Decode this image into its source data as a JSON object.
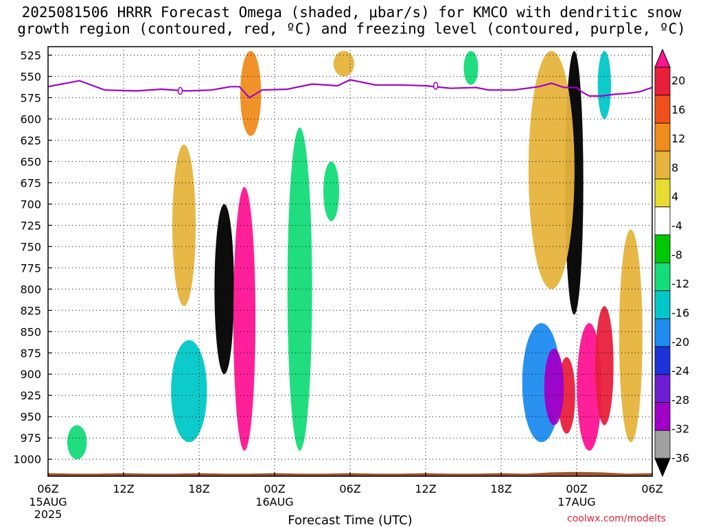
{
  "title": {
    "line1": "2025081506 HRRR Forecast Omega (shaded, μbar/s) for KMCO with dendritic snow",
    "line2": "growth region (contoured, red, ºC) and freezing level (contoured, purple, ºC)"
  },
  "watermark": "coolwx.com/modelts",
  "chart_data": {
    "type": "heatmap",
    "title": "2025081506 HRRR Forecast Omega (shaded, μbar/s) for KMCO with dendritic snow growth region (contoured, red, ºC) and freezing level (contoured, purple, ºC)",
    "xlabel": "Forecast Time (UTC)",
    "ylabel": "",
    "x_range_hours": [
      0,
      48
    ],
    "x_ticks": [
      {
        "hour": 0,
        "label": "06Z",
        "sub": [
          "15AUG",
          "2025"
        ]
      },
      {
        "hour": 6,
        "label": "12Z",
        "sub": []
      },
      {
        "hour": 12,
        "label": "18Z",
        "sub": []
      },
      {
        "hour": 18,
        "label": "00Z",
        "sub": [
          "16AUG"
        ]
      },
      {
        "hour": 24,
        "label": "06Z",
        "sub": []
      },
      {
        "hour": 30,
        "label": "12Z",
        "sub": []
      },
      {
        "hour": 36,
        "label": "18Z",
        "sub": []
      },
      {
        "hour": 42,
        "label": "00Z",
        "sub": [
          "17AUG"
        ]
      },
      {
        "hour": 48,
        "label": "06Z",
        "sub": []
      }
    ],
    "y_range_mb": [
      515,
      1020
    ],
    "y_ticks": [
      525,
      550,
      575,
      600,
      625,
      650,
      675,
      700,
      725,
      750,
      775,
      800,
      825,
      850,
      875,
      900,
      925,
      950,
      975,
      1000
    ],
    "grid": true,
    "colorbar": {
      "labels": [
        "20",
        "16",
        "12",
        "8",
        "4",
        "-4",
        "-8",
        "-12",
        "-16",
        "-20",
        "-24",
        "-28",
        "-32",
        "-36"
      ],
      "colors": [
        "#ff1493",
        "#e8203c",
        "#f0501a",
        "#f08c1e",
        "#e6b43c",
        "#e6dc32",
        "#ffffff",
        "#00c800",
        "#14dc78",
        "#00c8c8",
        "#1e8cf0",
        "#1e32dc",
        "#6e1ed2",
        "#a000c8",
        "#a0a0a0",
        "#000000"
      ]
    },
    "freezing_level": {
      "color": "#a000c8",
      "label": "0",
      "points": [
        [
          0,
          562
        ],
        [
          2.5,
          555
        ],
        [
          4.5,
          566
        ],
        [
          7,
          567
        ],
        [
          9,
          565
        ],
        [
          11,
          567
        ],
        [
          13,
          566
        ],
        [
          14.5,
          562
        ],
        [
          15.2,
          562
        ],
        [
          16,
          575
        ],
        [
          17,
          566
        ],
        [
          19,
          565
        ],
        [
          21,
          559
        ],
        [
          23,
          561
        ],
        [
          24,
          554
        ],
        [
          26,
          560
        ],
        [
          28,
          560
        ],
        [
          30,
          561
        ],
        [
          32,
          564
        ],
        [
          34,
          563
        ],
        [
          35,
          566
        ],
        [
          37,
          566
        ],
        [
          39,
          562
        ],
        [
          40,
          558
        ],
        [
          41,
          563
        ],
        [
          42,
          563
        ],
        [
          42.4,
          568
        ],
        [
          43,
          573
        ],
        [
          44,
          573
        ],
        [
          45,
          571
        ],
        [
          46,
          570
        ],
        [
          47,
          568
        ],
        [
          48,
          563
        ]
      ],
      "label_hours": [
        10.5,
        30.8
      ]
    },
    "omega_features": [
      {
        "hour": 14.0,
        "p_top": 700,
        "p_bot": 900,
        "width_h": 0.9,
        "value": -36
      },
      {
        "hour": 15.6,
        "p_top": 680,
        "p_bot": 990,
        "width_h": 1.1,
        "value": 20
      },
      {
        "hour": 16.1,
        "p_top": 520,
        "p_bot": 620,
        "width_h": 1.0,
        "value": 8
      },
      {
        "hour": 41.8,
        "p_top": 520,
        "p_bot": 830,
        "width_h": 0.8,
        "value": -36
      },
      {
        "hour": 43.0,
        "p_top": 840,
        "p_bot": 990,
        "width_h": 1.3,
        "value": 20
      },
      {
        "hour": 41.2,
        "p_top": 880,
        "p_bot": 970,
        "width_h": 0.7,
        "value": 16
      },
      {
        "hour": 11.2,
        "p_top": 860,
        "p_bot": 980,
        "width_h": 2.2,
        "value": -12
      },
      {
        "hour": 39.2,
        "p_top": 840,
        "p_bot": 980,
        "width_h": 2.4,
        "value": -16
      },
      {
        "hour": 40.2,
        "p_top": 870,
        "p_bot": 960,
        "width_h": 0.9,
        "value": -28
      },
      {
        "hour": 20.0,
        "p_top": 610,
        "p_bot": 990,
        "width_h": 1.3,
        "value": -8
      },
      {
        "hour": 22.5,
        "p_top": 650,
        "p_bot": 720,
        "width_h": 0.6,
        "value": -8
      },
      {
        "hour": 2.3,
        "p_top": 960,
        "p_bot": 1000,
        "width_h": 0.9,
        "value": -8
      },
      {
        "hour": 33.6,
        "p_top": 520,
        "p_bot": 560,
        "width_h": 0.5,
        "value": -8
      },
      {
        "hour": 44.2,
        "p_top": 520,
        "p_bot": 600,
        "width_h": 0.4,
        "value": -12
      },
      {
        "hour": 40.0,
        "p_top": 520,
        "p_bot": 800,
        "width_h": 3.0,
        "value": 4
      },
      {
        "hour": 10.8,
        "p_top": 630,
        "p_bot": 820,
        "width_h": 1.2,
        "value": 4
      },
      {
        "hour": 23.5,
        "p_top": 520,
        "p_bot": 550,
        "width_h": 1.0,
        "value": 4
      },
      {
        "hour": 46.3,
        "p_top": 730,
        "p_bot": 980,
        "width_h": 1.2,
        "value": 4
      },
      {
        "hour": 44.2,
        "p_top": 820,
        "p_bot": 960,
        "width_h": 0.8,
        "value": 16
      }
    ]
  }
}
